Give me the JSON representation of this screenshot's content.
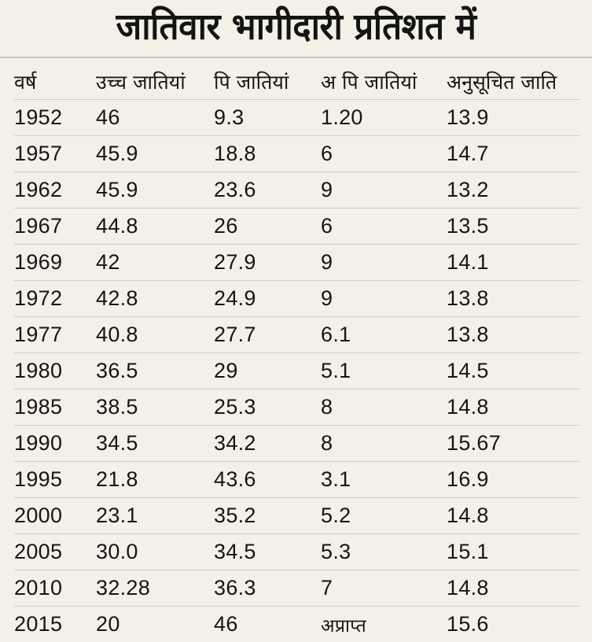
{
  "chart_data": {
    "type": "table",
    "title": "जातिवार भागीदारी प्रतिशत में",
    "columns": [
      "वर्ष",
      "उच्च जातियां",
      "पि जातियां",
      "अ पि जातियां",
      "अनुसूचित जाति"
    ],
    "rows": [
      [
        "1952",
        "46",
        "9.3",
        "1.20",
        "13.9"
      ],
      [
        "1957",
        "45.9",
        "18.8",
        "6",
        "14.7"
      ],
      [
        "1962",
        "45.9",
        "23.6",
        "9",
        "13.2"
      ],
      [
        "1967",
        "44.8",
        "26",
        "6",
        "13.5"
      ],
      [
        "1969",
        "42",
        "27.9",
        "9",
        "14.1"
      ],
      [
        "1972",
        "42.8",
        "24.9",
        "9",
        "13.8"
      ],
      [
        "1977",
        "40.8",
        "27.7",
        "6.1",
        "13.8"
      ],
      [
        "1980",
        "36.5",
        "29",
        "5.1",
        "14.5"
      ],
      [
        "1985",
        "38.5",
        "25.3",
        "8",
        "14.8"
      ],
      [
        "1990",
        "34.5",
        "34.2",
        "8",
        "15.67"
      ],
      [
        "1995",
        "21.8",
        "43.6",
        "3.1",
        "16.9"
      ],
      [
        "2000",
        "23.1",
        "35.2",
        "5.2",
        "14.8"
      ],
      [
        "2005",
        "30.0",
        "34.5",
        "5.3",
        "15.1"
      ],
      [
        "2010",
        "32.28",
        "36.3",
        "7",
        "14.8"
      ],
      [
        "2015",
        "20",
        "46",
        "अप्राप्त",
        "15.6"
      ]
    ]
  },
  "colors": {
    "background": "#f3f0e8",
    "text": "#141414",
    "rule": "#d2cdbf"
  }
}
